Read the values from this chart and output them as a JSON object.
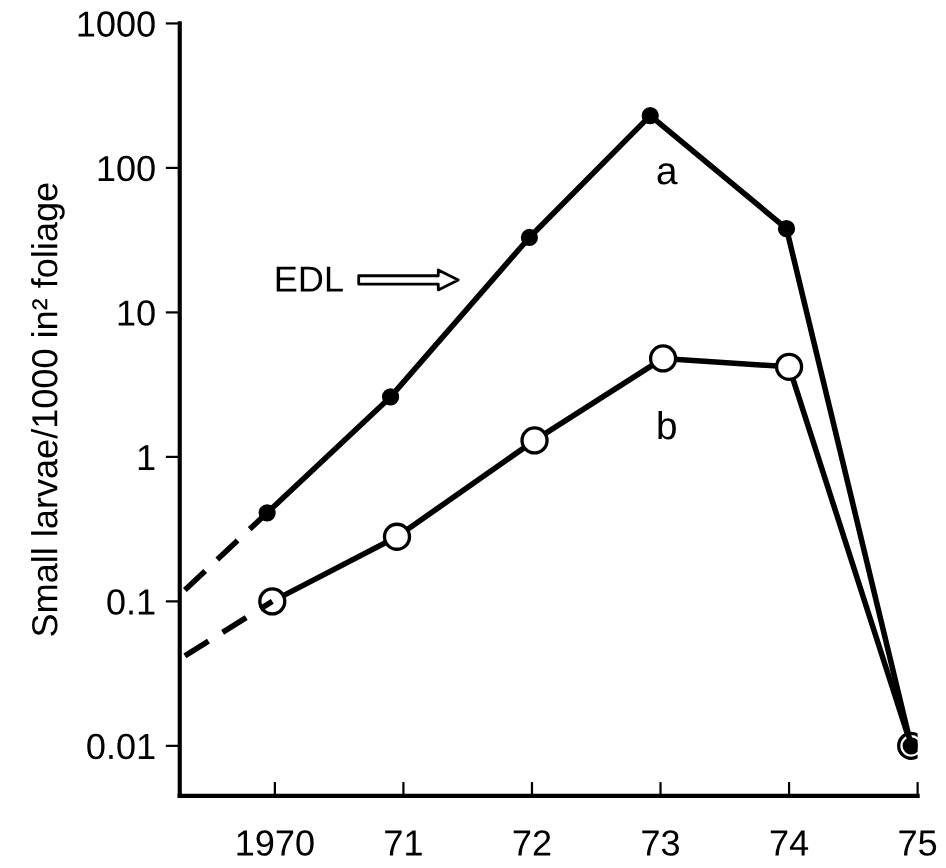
{
  "chart_data": {
    "type": "line",
    "ylabel": "Small larvae/1000 in² foliage",
    "log": "y",
    "grid": false,
    "legend": false,
    "marker": "circle",
    "line_style": "solid",
    "xlim": [
      1969.26,
      1975
    ],
    "ylim": [
      0.0045,
      1000
    ],
    "xticks": [
      1970,
      {
        "value": 1971,
        "label": "71"
      },
      {
        "value": 1972,
        "label": "72"
      },
      {
        "value": 1973,
        "label": "73"
      },
      {
        "value": 1974,
        "label": "74"
      },
      {
        "value": 1975,
        "label": "75"
      }
    ],
    "yticks": [
      0.01,
      0.1,
      1,
      10,
      100,
      1000
    ],
    "series": [
      {
        "color": "#000000",
        "x": [
          1969.94,
          1970.9,
          1971.98,
          1972.92,
          1973.98,
          1974.95
        ],
        "values": [
          0.41,
          2.6,
          33,
          230,
          38,
          0.01
        ]
      },
      {
        "color": "#000000",
        "x": [
          1969.98,
          1970.95,
          1972.02,
          1973.02,
          1974.0,
          1974.95
        ],
        "values": [
          0.1,
          0.28,
          1.3,
          4.8,
          4.2,
          0.01
        ]
      },
      {
        "color": "#000000",
        "marker": "none",
        "line_style": "dashed",
        "x": [
          1969.3,
          1969.94
        ],
        "values": [
          0.12,
          0.41
        ]
      },
      {
        "color": "#000000",
        "marker": "none",
        "line_style": "dashed",
        "x": [
          1969.3,
          1969.98
        ],
        "values": [
          0.042,
          0.1
        ]
      }
    ],
    "annotations": [
      "a",
      "b",
      "EDL"
    ]
  }
}
